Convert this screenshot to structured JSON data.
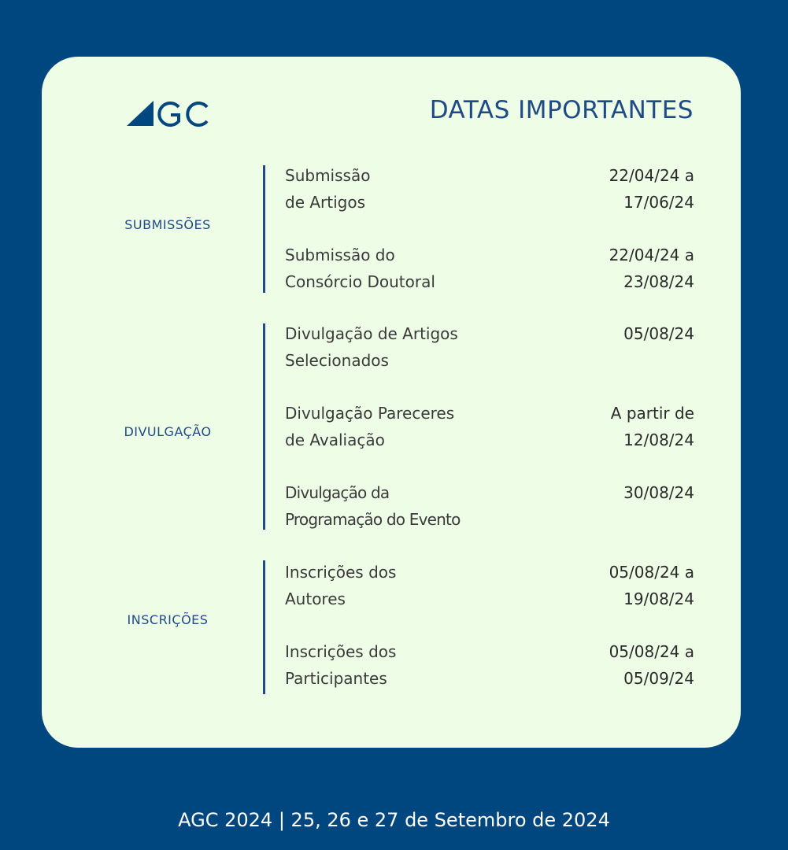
{
  "logo_text": "AGC",
  "title": "DATAS IMPORTANTES",
  "colors": {
    "background": "#00467f",
    "card": "#eefde6",
    "accent": "#1f4a86"
  },
  "groups": [
    {
      "category": "SUBMISSÕES",
      "items": [
        {
          "label": "Submissão\nde Artigos",
          "date": "22/04/24 a\n17/06/24"
        },
        {
          "label": "Submissão do\nConsórcio Doutoral",
          "date": "22/04/24 a\n23/08/24"
        }
      ]
    },
    {
      "category": "DIVULGAÇÃO",
      "items": [
        {
          "label": "Divulgação de Artigos\nSelecionados",
          "date": "05/08/24"
        },
        {
          "label": "Divulgação Pareceres\nde Avaliação",
          "date": "A partir de\n12/08/24"
        },
        {
          "label": "Divulgação da\nProgramação do Evento",
          "date": "30/08/24"
        }
      ]
    },
    {
      "category": "INSCRIÇÕES",
      "items": [
        {
          "label": "Inscrições dos\nAutores",
          "date": "05/08/24 a\n19/08/24"
        },
        {
          "label": "Inscrições dos\nParticipantes",
          "date": "05/08/24 a\n05/09/24"
        }
      ]
    }
  ],
  "footer": "AGC 2024 | 25, 26 e 27 de Setembro de 2024"
}
